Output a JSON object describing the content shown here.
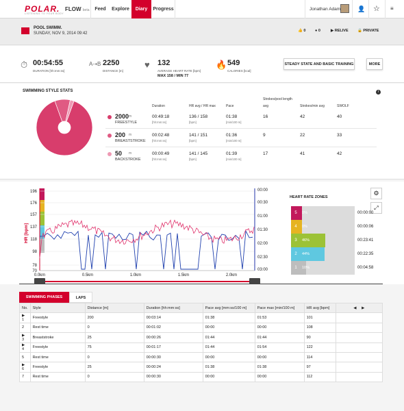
{
  "nav": {
    "logo": "POLAR.",
    "logo_sub": "LISTENING TO YOUR BODY",
    "flow": "FLOW",
    "flow_sub": "beta",
    "items": [
      {
        "label": "Feed"
      },
      {
        "label": "Explore"
      },
      {
        "label": "Diary"
      },
      {
        "label": "Progress"
      }
    ],
    "user": "Jonathan Adams"
  },
  "header": {
    "title": "POOL SWIMM.",
    "date": "SUNDAY, NOV 9, 2014 09:42",
    "likes": "0",
    "comments": "0",
    "relive": "RELIVE",
    "privacy": "PRIVATE"
  },
  "summary": {
    "duration": {
      "value": "00:54:55",
      "label": "DURATION [hh:mm:ss]"
    },
    "distance": {
      "value": "2250",
      "label": "DISTANCE [m]"
    },
    "hr": {
      "value": "132",
      "label": "AVERAGE HEART RATE [bpm]",
      "sub": "MAX 158  /  MIN 77"
    },
    "calories": {
      "value": "549",
      "label": "CALORIES [kcal]"
    },
    "benefit_btn": "STEADY STATE AND BASIC TRAINING",
    "more_btn": "MORE"
  },
  "styles": {
    "title": "SWIMMING STYLE STATS",
    "headers": {
      "duration": "Duration",
      "hr": "HR avg / HR max",
      "pace": "Pace",
      "spl1": "Strokes/pool length",
      "spl2": "avg",
      "spm": "Strokes/min avg",
      "swolf": "SWOLF"
    },
    "units": {
      "duration": "[hh:mm:ss]",
      "hr": "[bpm]",
      "pace": "[min/100 m]"
    },
    "rows": [
      {
        "dist": "2000",
        "unit": "m",
        "name": "FREESTYLE",
        "duration": "00:49:18",
        "hr": "136 / 158",
        "pace": "01:38",
        "spl": "16",
        "spm": "42",
        "swolf": "40",
        "color": "#d83d6c"
      },
      {
        "dist": "200",
        "unit": "m",
        "name": "BREASTSTROKE",
        "duration": "00:02:48",
        "hr": "141 / 151",
        "pace": "01:36",
        "spl": "9",
        "spm": "22",
        "swolf": "33",
        "color": "#e05a83"
      },
      {
        "dist": "50",
        "unit": "m",
        "name": "BACKSTROKE",
        "duration": "00:00:49",
        "hr": "141 / 145",
        "pace": "01:39",
        "spl": "17",
        "spm": "41",
        "swolf": "42",
        "color": "#ee9ab4"
      }
    ],
    "pie": [
      2000,
      200,
      50
    ]
  },
  "graph": {
    "hr_label": "HR [bpm]",
    "pace_label": "Pace [min/100m]",
    "hr_ticks": [
      "196",
      "176",
      "157",
      "137",
      "118",
      "98",
      "78",
      "70"
    ],
    "pace_ticks": [
      "00:00",
      "00:30",
      "01:00",
      "01:30",
      "02:00",
      "02:30",
      "03:00"
    ],
    "x_ticks": [
      "0.0km",
      "0.5km",
      "1.0km",
      "1.5km",
      "2.0km"
    ],
    "zones_title": "HEART RATE ZONES",
    "zones": [
      {
        "n": "5",
        "pct": "0%",
        "time": "00:00:00",
        "frac": 0.0,
        "color": "#c2185b"
      },
      {
        "n": "4",
        "pct": "0%",
        "time": "00:00:06",
        "frac": 0.0,
        "color": "#e6b422"
      },
      {
        "n": "3",
        "pct": "46%",
        "time": "00:23:41",
        "frac": 0.46,
        "color": "#9cc236"
      },
      {
        "n": "2",
        "pct": "44%",
        "time": "00:22:35",
        "frac": 0.44,
        "color": "#5fc8e0"
      },
      {
        "n": "1",
        "pct": "10%",
        "time": "00:04:58",
        "frac": 0.1,
        "color": "#bdbdbd"
      }
    ]
  },
  "phases": {
    "tabs": [
      "SWIMMING PHASES",
      "LAPS"
    ],
    "headers": [
      "No.",
      "Style",
      "Distance [m]",
      "Duration [hh:mm:ss]",
      "Pace avg [mm:ss/100 m]",
      "Pace max [min/100 m]",
      "HR avg [bpm]"
    ],
    "rows": [
      [
        "1",
        "Freestyle",
        "200",
        "00:03:14",
        "01:38",
        "01:53",
        "101"
      ],
      [
        "2",
        "Rest time",
        "0",
        "00:01:02",
        "00:00",
        "00:00",
        "108"
      ],
      [
        "3",
        "Breaststroke",
        "25",
        "00:00:26",
        "01:44",
        "01:44",
        "90"
      ],
      [
        "4",
        "Freestyle",
        "75",
        "00:01:17",
        "01:44",
        "01:54",
        "122"
      ],
      [
        "5",
        "Rest time",
        "0",
        "00:00:30",
        "00:00",
        "00:00",
        "114"
      ],
      [
        "6",
        "Freestyle",
        "25",
        "00:00:24",
        "01:38",
        "01:38",
        "97"
      ],
      [
        "7",
        "Rest time",
        "0",
        "00:00:30",
        "00:00",
        "00:00",
        "112"
      ]
    ]
  }
}
